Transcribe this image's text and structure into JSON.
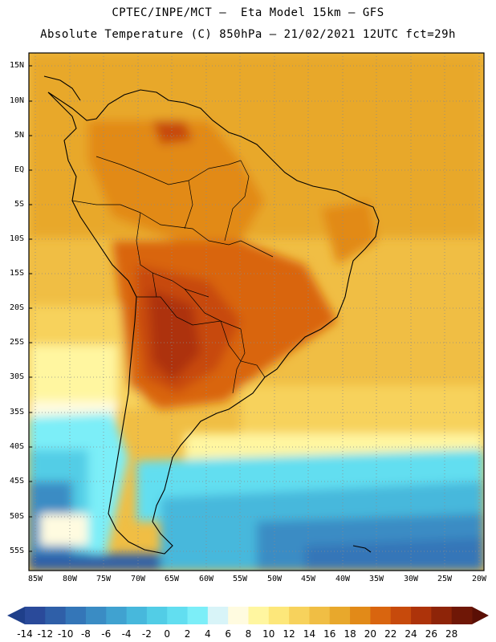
{
  "title": {
    "line1": "CPTEC/INPE/MCT –  Eta Model 15km – GFS",
    "line2": "Absolute Temperature (C) 850hPa – 21/02/2021 12UTC fct=29h"
  },
  "map": {
    "lat_labels": [
      "15N",
      "10N",
      "5N",
      "EQ",
      "5S",
      "10S",
      "15S",
      "20S",
      "25S",
      "30S",
      "35S",
      "40S",
      "45S",
      "50S",
      "55S"
    ],
    "lon_labels": [
      "85W",
      "80W",
      "75W",
      "70W",
      "65W",
      "60W",
      "55W",
      "50W",
      "45W",
      "40W",
      "35W",
      "30W",
      "25W",
      "20W"
    ]
  },
  "colorbar": {
    "ticks": [
      "-14",
      "-12",
      "-10",
      "-8",
      "-6",
      "-4",
      "-2",
      "0",
      "2",
      "4",
      "6",
      "8",
      "10",
      "12",
      "14",
      "16",
      "18",
      "20",
      "22",
      "24",
      "26",
      "28"
    ],
    "colors": [
      "#2a4a9a",
      "#2f5fa8",
      "#3476b8",
      "#3a8cc4",
      "#40a2d0",
      "#47b8dc",
      "#52cde6",
      "#62def0",
      "#7ceef8",
      "#d8f4f8",
      "#fffbe0",
      "#fff6a0",
      "#fde77a",
      "#f7d25c",
      "#f0be44",
      "#e8a82c",
      "#e28a18",
      "#d9650f",
      "#c74a0c",
      "#ad330a",
      "#8e2408",
      "#6f1706"
    ],
    "arrow_left_color": "#1f3f8a",
    "arrow_right_color": "#5a0f05"
  }
}
